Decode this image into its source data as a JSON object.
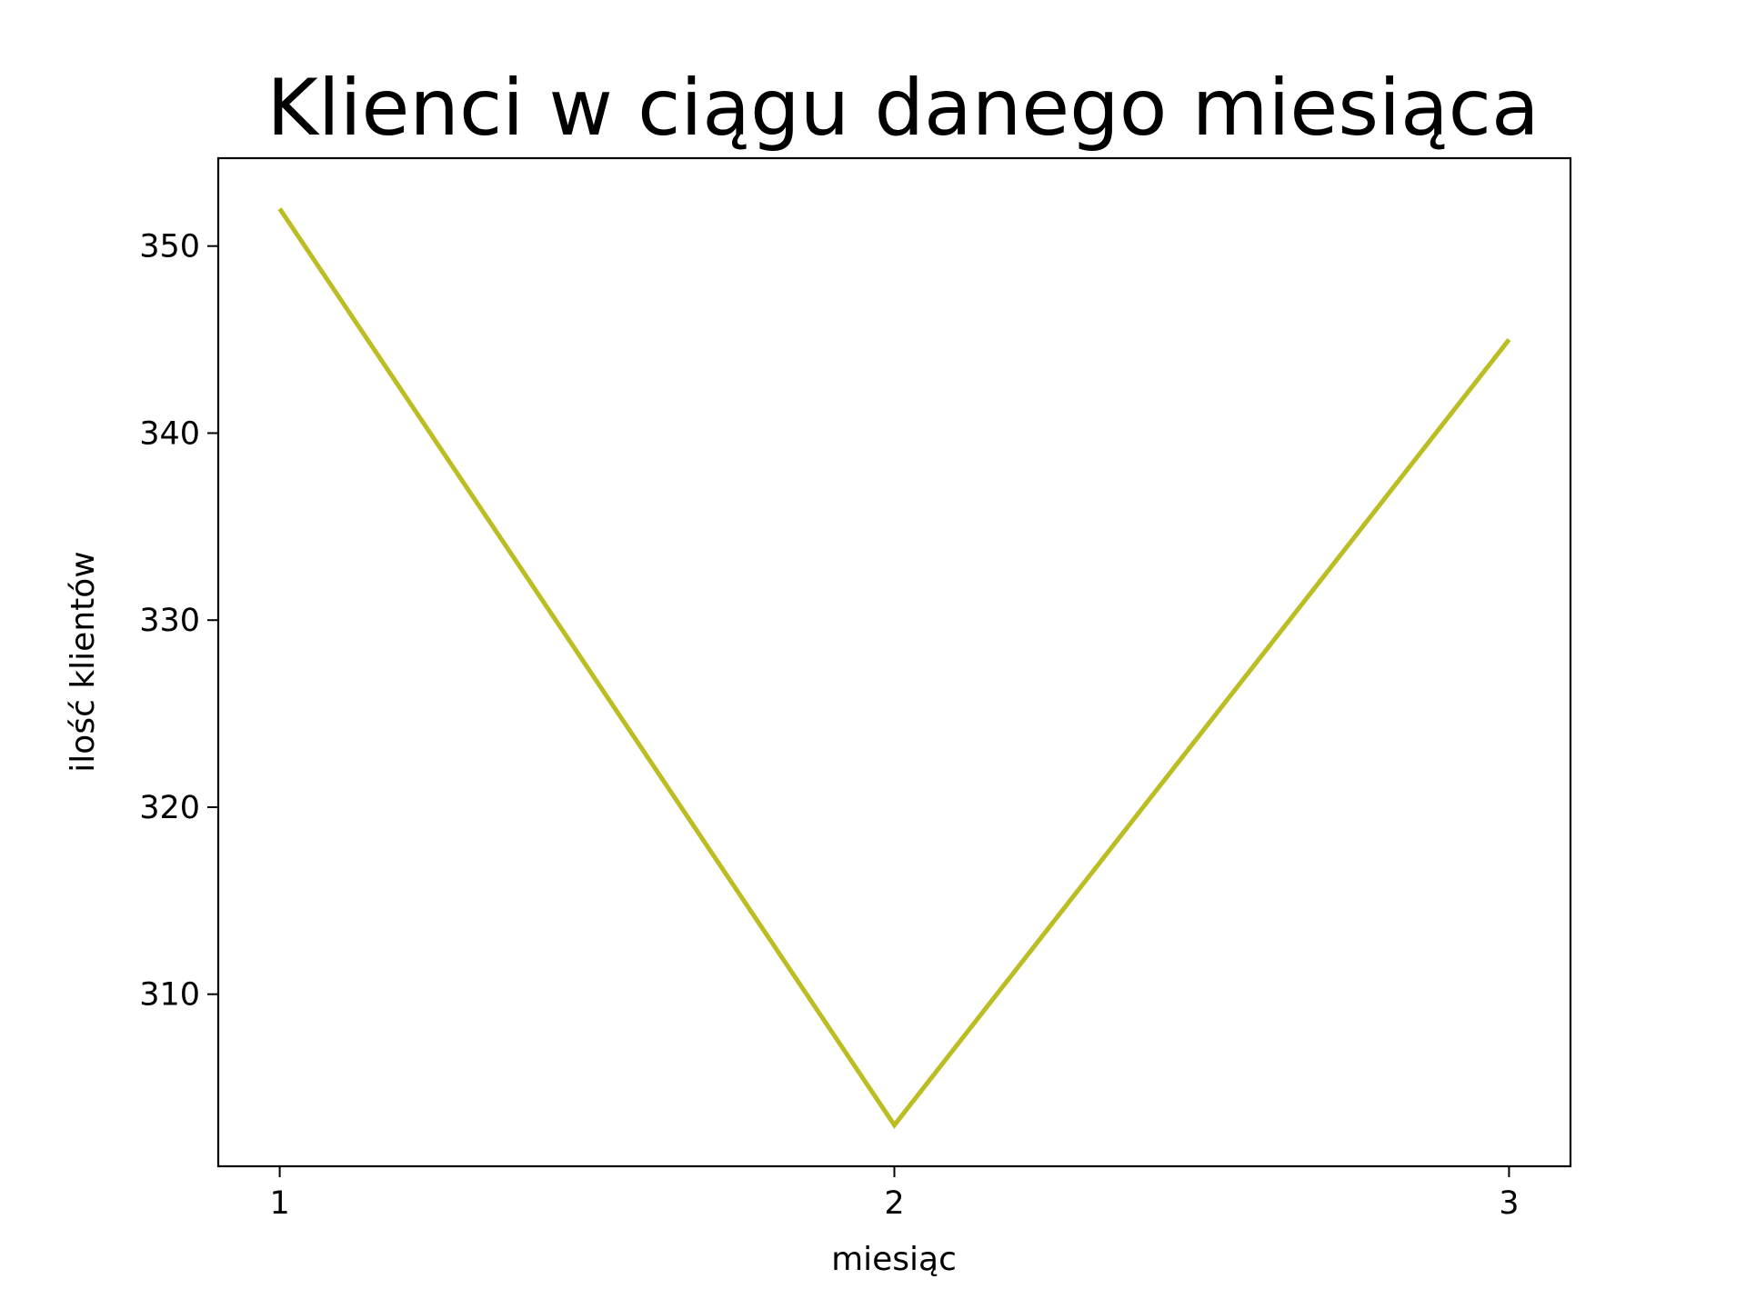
{
  "chart_data": {
    "type": "line",
    "title": "Klienci w ciągu danego miesiąca",
    "xlabel": "miesiąc",
    "ylabel": "ilość klientów",
    "x": [
      1,
      2,
      3
    ],
    "xticks": [
      "1",
      "2",
      "3"
    ],
    "yticks": [
      "310",
      "320",
      "330",
      "340",
      "350"
    ],
    "ylim": [
      300.8,
      354.7
    ],
    "xlim": [
      0.9,
      3.1
    ],
    "grid": false,
    "legend": "none",
    "series": [
      {
        "values": [
          352,
          303,
          345
        ],
        "color": "#bcbd22"
      }
    ]
  }
}
